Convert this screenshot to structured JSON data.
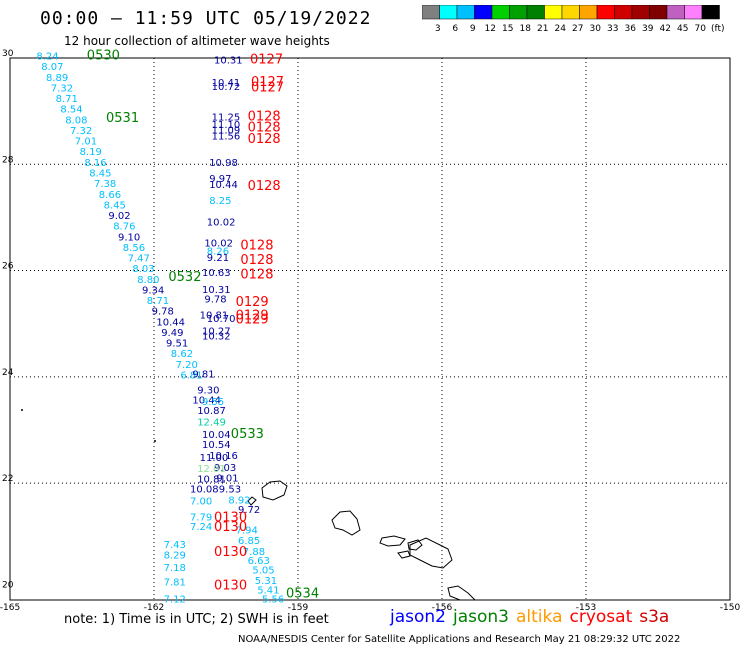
{
  "header": {
    "title": "00:00 – 11:59 UTC 05/19/2022",
    "subtitle": "12 hour collection of altimeter wave heights"
  },
  "color_scale": {
    "labels": [
      "3",
      "6",
      "9",
      "12",
      "15",
      "18",
      "21",
      "24",
      "27",
      "30",
      "33",
      "36",
      "39",
      "42",
      "45",
      "70",
      "(ft)"
    ],
    "colors": [
      "#808080",
      "#00ffff",
      "#00bfff",
      "#0000ff",
      "#00d000",
      "#00a000",
      "#008000",
      "#ffff00",
      "#ffd700",
      "#ffa500",
      "#ff0000",
      "#d00000",
      "#a00000",
      "#800000",
      "#c060c0",
      "#ff80ff",
      "#000000"
    ]
  },
  "axes": {
    "lon_labels": [
      "-165",
      "-162",
      "-159",
      "-156",
      "-153",
      "-150"
    ],
    "lon_values": [
      -165,
      -162,
      -159,
      -156,
      -153,
      -150
    ],
    "lat_labels": [
      "30",
      "28",
      "26",
      "24",
      "22",
      "20"
    ],
    "lat_values": [
      30,
      28,
      26,
      24,
      22,
      20
    ]
  },
  "observations": [
    {
      "lon": -164.45,
      "lat": 29.97,
      "v": "8.24",
      "c": "#00bfff"
    },
    {
      "lon": -164.35,
      "lat": 29.77,
      "v": "8.07",
      "c": "#00bfff"
    },
    {
      "lon": -164.25,
      "lat": 29.57,
      "v": "8.89",
      "c": "#00bfff"
    },
    {
      "lon": -164.15,
      "lat": 29.37,
      "v": "7.32",
      "c": "#00bfff"
    },
    {
      "lon": -164.05,
      "lat": 29.17,
      "v": "8.71",
      "c": "#00bfff"
    },
    {
      "lon": -163.95,
      "lat": 28.97,
      "v": "8.54",
      "c": "#00bfff"
    },
    {
      "lon": -163.85,
      "lat": 28.77,
      "v": "8.08",
      "c": "#00bfff"
    },
    {
      "lon": -163.75,
      "lat": 28.57,
      "v": "7.32",
      "c": "#00bfff"
    },
    {
      "lon": -163.65,
      "lat": 28.37,
      "v": "7.01",
      "c": "#00bfff"
    },
    {
      "lon": -163.55,
      "lat": 28.17,
      "v": "8.19",
      "c": "#00bfff"
    },
    {
      "lon": -163.45,
      "lat": 27.97,
      "v": "8.16",
      "c": "#00bfff"
    },
    {
      "lon": -163.35,
      "lat": 27.77,
      "v": "8.45",
      "c": "#00bfff"
    },
    {
      "lon": -163.25,
      "lat": 27.57,
      "v": "7.38",
      "c": "#00bfff"
    },
    {
      "lon": -163.15,
      "lat": 27.37,
      "v": "8.66",
      "c": "#00bfff"
    },
    {
      "lon": -163.05,
      "lat": 27.17,
      "v": "8.45",
      "c": "#00bfff"
    },
    {
      "lon": -162.95,
      "lat": 26.97,
      "v": "9.02",
      "c": "#0000a0"
    },
    {
      "lon": -162.85,
      "lat": 26.77,
      "v": "8.76",
      "c": "#00bfff"
    },
    {
      "lon": -162.75,
      "lat": 26.57,
      "v": "9.10",
      "c": "#0000a0"
    },
    {
      "lon": -162.65,
      "lat": 26.37,
      "v": "8.56",
      "c": "#00bfff"
    },
    {
      "lon": -162.55,
      "lat": 26.17,
      "v": "7.47",
      "c": "#00bfff"
    },
    {
      "lon": -162.45,
      "lat": 25.97,
      "v": "8.03",
      "c": "#00bfff"
    },
    {
      "lon": -162.35,
      "lat": 25.77,
      "v": "8.80",
      "c": "#00bfff"
    },
    {
      "lon": -162.25,
      "lat": 25.57,
      "v": "9.34",
      "c": "#0000a0"
    },
    {
      "lon": -162.15,
      "lat": 25.37,
      "v": "8.71",
      "c": "#00bfff"
    },
    {
      "lon": -162.05,
      "lat": 25.17,
      "v": "9.78",
      "c": "#0000a0"
    },
    {
      "lon": -161.95,
      "lat": 24.97,
      "v": "10.44",
      "c": "#0000a0"
    },
    {
      "lon": -161.85,
      "lat": 24.77,
      "v": "9.49",
      "c": "#0000a0"
    },
    {
      "lon": -161.75,
      "lat": 24.57,
      "v": "9.51",
      "c": "#0000a0"
    },
    {
      "lon": -161.65,
      "lat": 24.37,
      "v": "8.62",
      "c": "#00bfff"
    },
    {
      "lon": -161.55,
      "lat": 24.17,
      "v": "7.20",
      "c": "#00bfff"
    },
    {
      "lon": -161.45,
      "lat": 23.97,
      "v": "6.81",
      "c": "#00bfff"
    },
    {
      "lon": -161.2,
      "lat": 23.99,
      "v": "9.81",
      "c": "#0000a0"
    },
    {
      "lon": -161.1,
      "lat": 23.69,
      "v": "9.30",
      "c": "#0000a0"
    },
    {
      "lon": -161.2,
      "lat": 23.5,
      "v": "10.44",
      "c": "#0000a0"
    },
    {
      "lon": -161.0,
      "lat": 23.47,
      "v": "9.55",
      "c": "#00bfff"
    },
    {
      "lon": -161.1,
      "lat": 23.3,
      "v": "10.87",
      "c": "#0000a0"
    },
    {
      "lon": -161.1,
      "lat": 23.08,
      "v": "12.49",
      "c": "#00d0a0"
    },
    {
      "lon": -161.0,
      "lat": 22.85,
      "v": "10.04",
      "c": "#0000a0"
    },
    {
      "lon": -161.0,
      "lat": 22.66,
      "v": "10.54",
      "c": "#0000a0"
    },
    {
      "lon": -160.85,
      "lat": 22.45,
      "v": "10.16",
      "c": "#0000a0"
    },
    {
      "lon": -161.05,
      "lat": 22.42,
      "v": "11.00",
      "c": "#0000a0"
    },
    {
      "lon": -160.75,
      "lat": 22.23,
      "v": "9.03",
      "c": "#0000a0"
    },
    {
      "lon": -161.1,
      "lat": 22.21,
      "v": "12.01",
      "c": "#90e090"
    },
    {
      "lon": -160.7,
      "lat": 22.03,
      "v": "9.01",
      "c": "#0000a0"
    },
    {
      "lon": -161.1,
      "lat": 22.01,
      "v": "10.81",
      "c": "#0000a0"
    },
    {
      "lon": -160.65,
      "lat": 21.82,
      "v": "9.53",
      "c": "#0000a0"
    },
    {
      "lon": -161.25,
      "lat": 21.82,
      "v": "10.08",
      "c": "#0000a0"
    },
    {
      "lon": -160.45,
      "lat": 21.62,
      "v": "8.92",
      "c": "#00bfff"
    },
    {
      "lon": -161.25,
      "lat": 21.6,
      "v": "7.00",
      "c": "#00bfff"
    },
    {
      "lon": -160.25,
      "lat": 21.44,
      "v": "9.72",
      "c": "#0000a0"
    },
    {
      "lon": -161.25,
      "lat": 21.3,
      "v": "7.79",
      "c": "#00bfff"
    },
    {
      "lon": -161.25,
      "lat": 21.12,
      "v": "7.24",
      "c": "#00bfff"
    },
    {
      "lon": -160.3,
      "lat": 21.05,
      "v": "7.94",
      "c": "#00bfff"
    },
    {
      "lon": -160.25,
      "lat": 20.85,
      "v": "6.85",
      "c": "#00bfff"
    },
    {
      "lon": -161.8,
      "lat": 20.78,
      "v": "7.43",
      "c": "#00bfff"
    },
    {
      "lon": -160.15,
      "lat": 20.65,
      "v": "7.88",
      "c": "#00bfff"
    },
    {
      "lon": -161.8,
      "lat": 20.58,
      "v": "8.29",
      "c": "#00bfff"
    },
    {
      "lon": -160.05,
      "lat": 20.48,
      "v": "6.63",
      "c": "#00bfff"
    },
    {
      "lon": -161.8,
      "lat": 20.35,
      "v": "7.18",
      "c": "#00bfff"
    },
    {
      "lon": -159.95,
      "lat": 20.3,
      "v": "5.05",
      "c": "#00bfff"
    },
    {
      "lon": -159.9,
      "lat": 20.1,
      "v": "5.31",
      "c": "#00bfff"
    },
    {
      "lon": -161.8,
      "lat": 20.07,
      "v": "7.81",
      "c": "#00bfff"
    },
    {
      "lon": -159.85,
      "lat": 19.92,
      "v": "5.41",
      "c": "#00bfff"
    },
    {
      "lon": -161.8,
      "lat": 19.75,
      "v": "7.12",
      "c": "#00bfff"
    },
    {
      "lon": -159.75,
      "lat": 19.75,
      "v": "5.56",
      "c": "#00bfff"
    },
    {
      "lon": -160.75,
      "lat": 29.9,
      "v": "10.31",
      "c": "#0000a0"
    },
    {
      "lon": -160.8,
      "lat": 29.47,
      "v": "10.41",
      "c": "#0000a0"
    },
    {
      "lon": -160.8,
      "lat": 29.4,
      "v": "10.72",
      "c": "#0000a0"
    },
    {
      "lon": -160.8,
      "lat": 28.82,
      "v": "11.25",
      "c": "#0000a0"
    },
    {
      "lon": -160.8,
      "lat": 28.68,
      "v": "11.10",
      "c": "#0000a0"
    },
    {
      "lon": -160.8,
      "lat": 28.58,
      "v": "11.09",
      "c": "#0000a0"
    },
    {
      "lon": -160.8,
      "lat": 28.47,
      "v": "11.56",
      "c": "#0000a0"
    },
    {
      "lon": -160.85,
      "lat": 27.97,
      "v": "10.98",
      "c": "#0000a0"
    },
    {
      "lon": -160.85,
      "lat": 27.67,
      "v": "9.97",
      "c": "#0000a0"
    },
    {
      "lon": -160.85,
      "lat": 27.55,
      "v": "10.44",
      "c": "#0000a0"
    },
    {
      "lon": -160.85,
      "lat": 27.25,
      "v": "8.25",
      "c": "#00bfff"
    },
    {
      "lon": -160.9,
      "lat": 26.85,
      "v": "10.02",
      "c": "#0000a0"
    },
    {
      "lon": -160.95,
      "lat": 26.45,
      "v": "10.02",
      "c": "#0000a0"
    },
    {
      "lon": -160.9,
      "lat": 26.3,
      "v": "8.26",
      "c": "#00bfff"
    },
    {
      "lon": -160.9,
      "lat": 26.18,
      "v": "9.21",
      "c": "#0000a0"
    },
    {
      "lon": -161.0,
      "lat": 25.9,
      "v": "10.63",
      "c": "#0000a0"
    },
    {
      "lon": -161.0,
      "lat": 25.58,
      "v": "10.31",
      "c": "#0000a0"
    },
    {
      "lon": -160.95,
      "lat": 25.4,
      "v": "9.78",
      "c": "#0000a0"
    },
    {
      "lon": -161.05,
      "lat": 25.1,
      "v": "10.81",
      "c": "#0000a0"
    },
    {
      "lon": -160.9,
      "lat": 25.03,
      "v": "10.70",
      "c": "#0000a0"
    },
    {
      "lon": -161.0,
      "lat": 24.8,
      "v": "10.27",
      "c": "#0000a0"
    },
    {
      "lon": -161.0,
      "lat": 24.7,
      "v": "10.32",
      "c": "#0000a0"
    }
  ],
  "time_labels": [
    {
      "lon": -163.4,
      "lat": 29.97,
      "t": "0530",
      "c": "#008000"
    },
    {
      "lon": -163.0,
      "lat": 28.8,
      "t": "0531",
      "c": "#008000"
    },
    {
      "lon": -161.7,
      "lat": 25.8,
      "t": "0532",
      "c": "#008000"
    },
    {
      "lon": -160.4,
      "lat": 22.85,
      "t": "0533",
      "c": "#008000"
    },
    {
      "lon": -159.25,
      "lat": 19.85,
      "t": "0534",
      "c": "#008000"
    },
    {
      "lon": -160.0,
      "lat": 29.9,
      "t": "0127",
      "c": "#ff0000"
    },
    {
      "lon": -159.98,
      "lat": 29.47,
      "t": "0127",
      "c": "#ff0000"
    },
    {
      "lon": -159.98,
      "lat": 29.37,
      "t": "0127",
      "c": "#ff0000"
    },
    {
      "lon": -160.05,
      "lat": 28.82,
      "t": "0128",
      "c": "#ff0000"
    },
    {
      "lon": -160.05,
      "lat": 28.62,
      "t": "0128",
      "c": "#ff0000"
    },
    {
      "lon": -160.05,
      "lat": 28.4,
      "t": "0128",
      "c": "#ff0000"
    },
    {
      "lon": -160.05,
      "lat": 27.52,
      "t": "0128",
      "c": "#ff0000"
    },
    {
      "lon": -160.2,
      "lat": 26.4,
      "t": "0128",
      "c": "#ff0000"
    },
    {
      "lon": -160.2,
      "lat": 26.12,
      "t": "0128",
      "c": "#ff0000"
    },
    {
      "lon": -160.2,
      "lat": 25.85,
      "t": "0128",
      "c": "#ff0000"
    },
    {
      "lon": -160.3,
      "lat": 25.33,
      "t": "0129",
      "c": "#ff0000"
    },
    {
      "lon": -160.3,
      "lat": 25.08,
      "t": "0129",
      "c": "#ff0000"
    },
    {
      "lon": -160.3,
      "lat": 25.0,
      "t": "0129",
      "c": "#ff0000"
    },
    {
      "lon": -160.75,
      "lat": 21.28,
      "t": "0130",
      "c": "#ff0000"
    },
    {
      "lon": -160.75,
      "lat": 21.1,
      "t": "0130",
      "c": "#ff0000"
    },
    {
      "lon": -160.75,
      "lat": 20.63,
      "t": "0130",
      "c": "#ff0000"
    },
    {
      "lon": -160.75,
      "lat": 20.0,
      "t": "0130",
      "c": "#ff0000"
    }
  ],
  "note": "note: 1) Time is in UTC; 2) SWH is in feet",
  "legend": [
    {
      "name": "jason2",
      "color": "#0000ff"
    },
    {
      "name": "jason3",
      "color": "#008000"
    },
    {
      "name": "altika",
      "color": "#ff9900"
    },
    {
      "name": "cryosat",
      "color": "#ff0000"
    },
    {
      "name": "s3a",
      "color": "#d00000"
    }
  ],
  "footer": "NOAA/NESDIS Center for Satellite Applications and Research    May 21 08:29:32 UTC 2022"
}
